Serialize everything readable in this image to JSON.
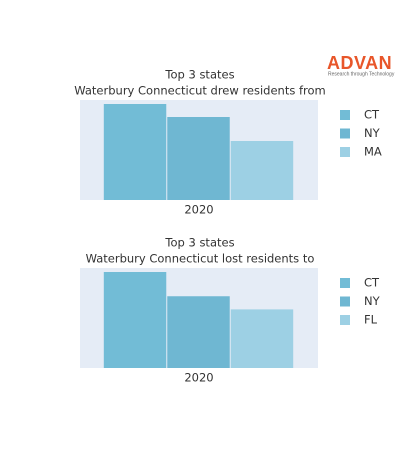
{
  "logo": {
    "name": "ADVAN",
    "tagline": "Research through Technology"
  },
  "chart_data": [
    {
      "type": "bar",
      "title": "Top 3 states",
      "subtitle": "Waterbury Connecticut drew residents from",
      "categories": [
        "2020"
      ],
      "legend": "right",
      "series": [
        {
          "name": "CT",
          "color": "#72bcd6",
          "values": [
            96
          ]
        },
        {
          "name": "NY",
          "color": "#6fb7d2",
          "values": [
            83
          ]
        },
        {
          "name": "MA",
          "color": "#9dd0e4",
          "values": [
            59
          ]
        }
      ]
    },
    {
      "type": "bar",
      "title": "Top 3 states",
      "subtitle": "Waterbury Connecticut lost residents to",
      "categories": [
        "2020"
      ],
      "legend": "right",
      "series": [
        {
          "name": "CT",
          "color": "#72bcd6",
          "values": [
            95
          ]
        },
        {
          "name": "NY",
          "color": "#6fb7d2",
          "values": [
            71
          ]
        },
        {
          "name": "FL",
          "color": "#9dd0e4",
          "values": [
            58
          ]
        }
      ]
    }
  ]
}
